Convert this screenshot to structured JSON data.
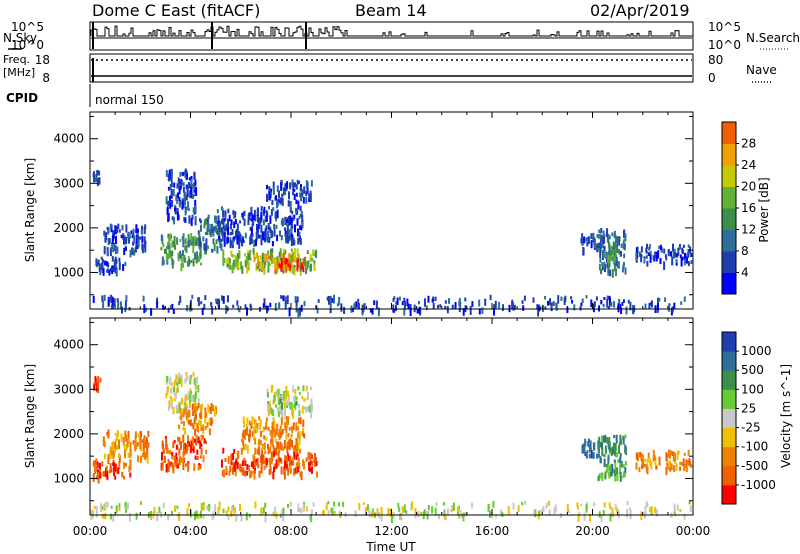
{
  "header": {
    "station": "Dome C East (fitACF)",
    "beam": "Beam 14",
    "date": "02/Apr/2019"
  },
  "top_panels": {
    "nsky_label": "N.Sky",
    "nsearch_label": "N.Search",
    "noise_left_hi": "10^5",
    "noise_left_lo": "10^0",
    "noise_right_hi": "10^5",
    "noise_right_lo": "10^0",
    "freq_label_1": "Freq.",
    "freq_label_2": "[MHz]",
    "freq_hi": "18",
    "freq_lo": "8",
    "nave_label": "Nave",
    "nave_hi": "80",
    "nave_lo": "0",
    "cpid_label": "CPID",
    "cpid_value": "normal 150"
  },
  "colors": {
    "power": [
      "#0000ff",
      "#1f3fb0",
      "#2e6e9a",
      "#3a8f4a",
      "#62b234",
      "#c8c800",
      "#f0a000",
      "#f06000",
      "#ff0000"
    ],
    "velocity": [
      "#ff0000",
      "#f06000",
      "#f08000",
      "#f0c000",
      "#c8c8c8",
      "#66cc33",
      "#3a8f4a",
      "#2e6e9a",
      "#1f3fb0"
    ]
  },
  "chart_data": [
    {
      "type": "heatmap",
      "name": "Power",
      "xlabel": "",
      "ylabel": "Slant Range [km]",
      "xlim": [
        0,
        24
      ],
      "ylim": [
        180,
        4600
      ],
      "yticks": [
        1000,
        2000,
        3000,
        4000
      ],
      "colorbar_label": "Power [dB]",
      "colorbar_ticks": [
        "4",
        "8",
        "12",
        "16",
        "20",
        "24",
        "28"
      ],
      "colorbar_range": [
        0,
        32
      ],
      "patches": [
        {
          "t": [
            0.1,
            1.4
          ],
          "r": [
            1050,
            1400
          ],
          "c": 1
        },
        {
          "t": [
            0.5,
            2.2
          ],
          "r": [
            1500,
            2100
          ],
          "c": 1
        },
        {
          "t": [
            0.1,
            0.4
          ],
          "r": [
            3100,
            3300
          ],
          "c": 1
        },
        {
          "t": [
            2.8,
            4.4
          ],
          "r": [
            1200,
            1900
          ],
          "c": 3
        },
        {
          "t": [
            3.0,
            4.2
          ],
          "r": [
            2200,
            3350
          ],
          "c": 1
        },
        {
          "t": [
            4.2,
            5.2
          ],
          "r": [
            1500,
            2300
          ],
          "c": 2
        },
        {
          "t": [
            5.2,
            9.0
          ],
          "r": [
            1100,
            1550
          ],
          "c": 4
        },
        {
          "t": [
            6.5,
            8.3
          ],
          "r": [
            1150,
            1450
          ],
          "c": 6
        },
        {
          "t": [
            7.5,
            8.5
          ],
          "r": [
            1150,
            1350
          ],
          "c": 8
        },
        {
          "t": [
            5.0,
            8.5
          ],
          "r": [
            1700,
            2500
          ],
          "c": 1
        },
        {
          "t": [
            7.0,
            8.8
          ],
          "r": [
            2600,
            3100
          ],
          "c": 1
        },
        {
          "t": [
            19.5,
            20.3
          ],
          "r": [
            1500,
            1900
          ],
          "c": 1
        },
        {
          "t": [
            20.2,
            21.3
          ],
          "r": [
            1050,
            2000
          ],
          "c": 2
        },
        {
          "t": [
            20.5,
            21.0
          ],
          "r": [
            1300,
            1800
          ],
          "c": 3
        },
        {
          "t": [
            21.7,
            23.9
          ],
          "r": [
            1250,
            1650
          ],
          "c": 1
        },
        {
          "t": [
            0.0,
            24.0
          ],
          "r": [
            180,
            500
          ],
          "c": 1
        }
      ]
    },
    {
      "type": "heatmap",
      "name": "Velocity",
      "xlabel": "Time UT",
      "ylabel": "Slant Range [km]",
      "xlim": [
        0,
        24
      ],
      "ylim": [
        180,
        4600
      ],
      "xticks": [
        "00:00",
        "04:00",
        "08:00",
        "12:00",
        "16:00",
        "20:00",
        "00:00"
      ],
      "yticks": [
        1000,
        2000,
        3000,
        4000
      ],
      "colorbar_label": "Velocity [m s^-1]",
      "colorbar_ticks": [
        "-1000",
        "-500",
        "-100",
        "-25",
        "25",
        "100",
        "500",
        "1000"
      ],
      "patches": [
        {
          "t": [
            0.1,
            1.6
          ],
          "r": [
            1050,
            1450
          ],
          "c": 1
        },
        {
          "t": [
            0.5,
            2.3
          ],
          "r": [
            1500,
            2100
          ],
          "c": 2
        },
        {
          "t": [
            0.1,
            0.4
          ],
          "r": [
            3100,
            3300
          ],
          "c": 0
        },
        {
          "t": [
            2.8,
            4.6
          ],
          "r": [
            1300,
            2000
          ],
          "c": 1
        },
        {
          "t": [
            3.0,
            4.3
          ],
          "r": [
            2600,
            3400
          ],
          "c": 4
        },
        {
          "t": [
            3.5,
            5.0
          ],
          "r": [
            2100,
            2700
          ],
          "c": 2
        },
        {
          "t": [
            5.2,
            9.0
          ],
          "r": [
            1150,
            1700
          ],
          "c": 1
        },
        {
          "t": [
            6.0,
            8.5
          ],
          "r": [
            1700,
            2400
          ],
          "c": 2
        },
        {
          "t": [
            7.0,
            8.8
          ],
          "r": [
            2500,
            3100
          ],
          "c": 4
        },
        {
          "t": [
            7.3,
            8.2
          ],
          "r": [
            2700,
            2900
          ],
          "c": 5
        },
        {
          "t": [
            19.5,
            20.3
          ],
          "r": [
            1500,
            1900
          ],
          "c": 7
        },
        {
          "t": [
            20.2,
            21.3
          ],
          "r": [
            1050,
            2000
          ],
          "c": 6
        },
        {
          "t": [
            21.7,
            23.9
          ],
          "r": [
            1250,
            1650
          ],
          "c": 2
        },
        {
          "t": [
            0.0,
            24.0
          ],
          "r": [
            180,
            500
          ],
          "c": 4
        }
      ]
    }
  ]
}
